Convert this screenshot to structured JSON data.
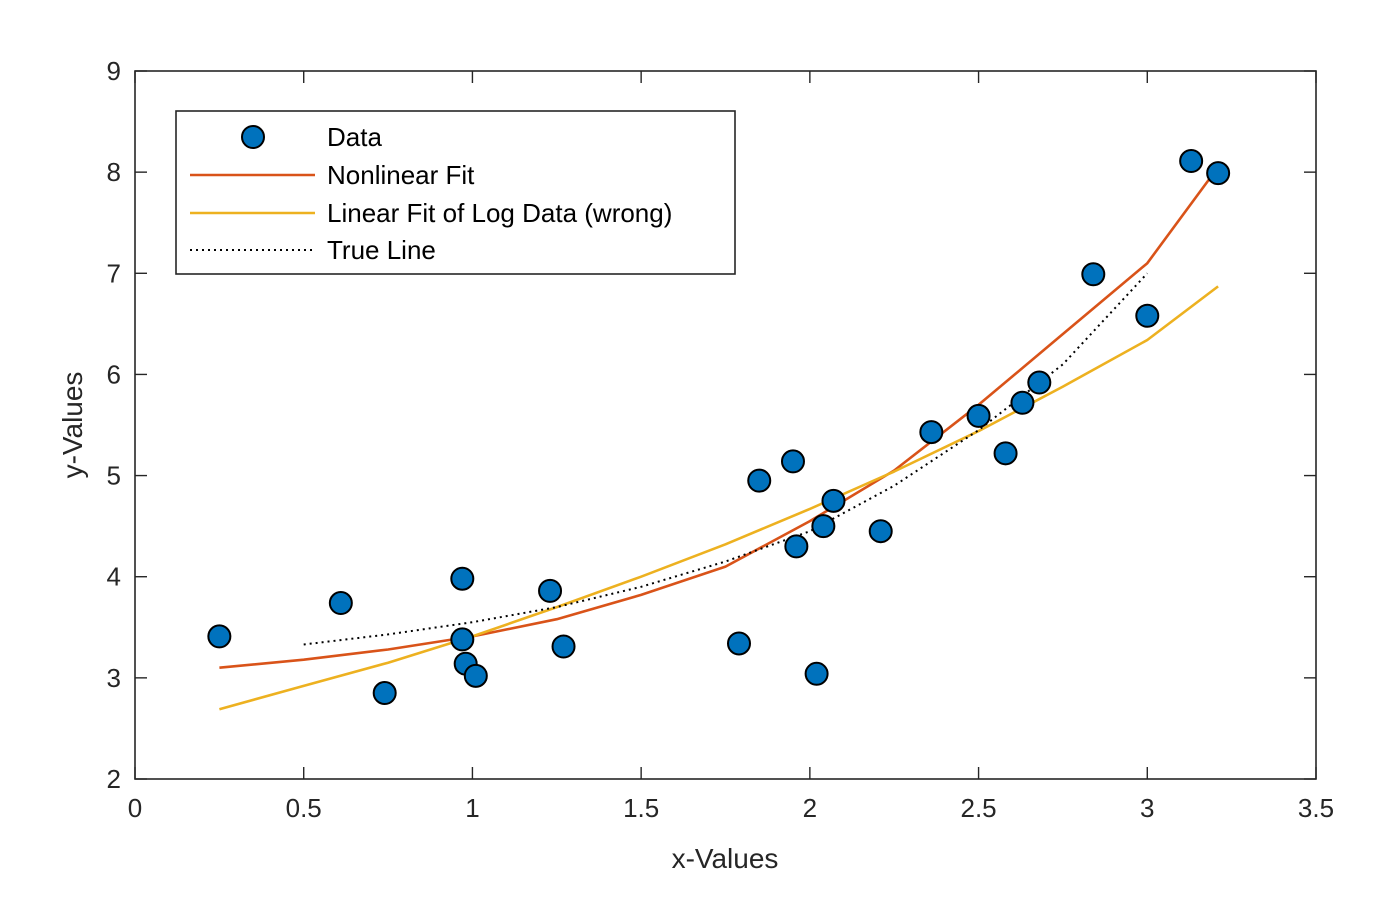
{
  "chart_data": {
    "type": "scatter",
    "xlabel": "x-Values",
    "ylabel": "y-Values",
    "xlim": [
      0,
      3.5
    ],
    "ylim": [
      2,
      9
    ],
    "xticks": [
      0,
      0.5,
      1,
      1.5,
      2,
      2.5,
      3,
      3.5
    ],
    "xtick_labels": [
      "0",
      "0.5",
      "1",
      "1.5",
      "2",
      "2.5",
      "3",
      "3.5"
    ],
    "yticks": [
      2,
      3,
      4,
      5,
      6,
      7,
      8,
      9
    ],
    "ytick_labels": [
      "2",
      "3",
      "4",
      "5",
      "6",
      "7",
      "8",
      "9"
    ],
    "grid": false,
    "legend_position": "top-left",
    "series": [
      {
        "name": "Data",
        "kind": "markers",
        "color": "#0072BD",
        "x": [
          0.25,
          0.61,
          0.74,
          0.97,
          0.97,
          0.98,
          1.01,
          1.23,
          1.27,
          1.79,
          1.85,
          1.95,
          1.96,
          2.02,
          2.04,
          2.07,
          2.21,
          2.36,
          2.5,
          2.58,
          2.63,
          2.68,
          2.84,
          3.0,
          3.13,
          3.21
        ],
        "y": [
          3.41,
          3.74,
          2.85,
          3.98,
          3.38,
          3.14,
          3.02,
          3.86,
          3.31,
          3.34,
          4.95,
          5.14,
          4.3,
          3.04,
          4.5,
          4.75,
          4.45,
          5.43,
          5.59,
          5.22,
          5.72,
          5.92,
          6.99,
          6.58,
          8.11,
          7.99
        ]
      },
      {
        "name": "Nonlinear Fit",
        "kind": "line",
        "color": "#D95319",
        "x": [
          0.25,
          0.5,
          0.75,
          1.0,
          1.25,
          1.5,
          1.75,
          2.0,
          2.25,
          2.5,
          2.75,
          3.0,
          3.21
        ],
        "y": [
          3.1,
          3.18,
          3.28,
          3.41,
          3.58,
          3.82,
          4.1,
          4.55,
          5.05,
          5.7,
          6.4,
          7.1,
          8.05
        ]
      },
      {
        "name": "Linear Fit of Log Data (wrong)",
        "kind": "line",
        "color": "#EDB120",
        "x": [
          0.25,
          0.5,
          0.75,
          1.0,
          1.25,
          1.5,
          1.75,
          2.0,
          2.25,
          2.5,
          2.75,
          3.0,
          3.21
        ],
        "y": [
          2.69,
          2.92,
          3.15,
          3.41,
          3.7,
          4.0,
          4.32,
          4.67,
          5.04,
          5.44,
          5.88,
          6.34,
          6.87
        ]
      },
      {
        "name": "True Line",
        "kind": "dotted",
        "color": "#000000",
        "x": [
          0.5,
          0.75,
          1.0,
          1.25,
          1.5,
          1.75,
          2.0,
          2.25,
          2.5,
          2.75,
          3.0
        ],
        "y": [
          3.33,
          3.43,
          3.55,
          3.7,
          3.9,
          4.15,
          4.45,
          4.9,
          5.45,
          6.1,
          7.0
        ]
      }
    ]
  }
}
